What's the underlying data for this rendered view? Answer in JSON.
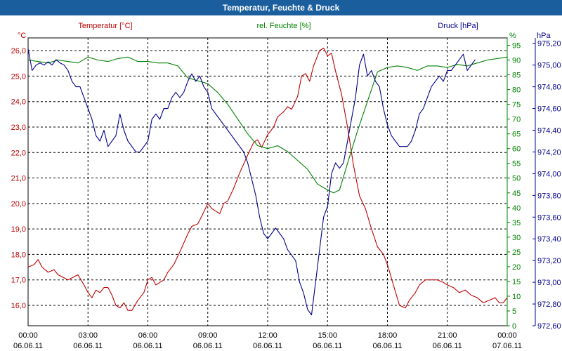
{
  "window": {
    "title": "Temperatur, Feuchte & Druck"
  },
  "colors": {
    "temperature": "#c00000",
    "humidity": "#008000",
    "pressure": "#00008b",
    "titlebar": "#1a5e9e",
    "grid": "#000000"
  },
  "chart_data": {
    "type": "line",
    "title": "Temperatur, Feuchte & Druck",
    "x_ticks": [
      {
        "time": "00:00",
        "date": "06.06.11"
      },
      {
        "time": "03:00",
        "date": "06.06.11"
      },
      {
        "time": "06:00",
        "date": "06.06.11"
      },
      {
        "time": "09:00",
        "date": "06.06.11"
      },
      {
        "time": "12:00",
        "date": "06.06.11"
      },
      {
        "time": "15:00",
        "date": "06.06.11"
      },
      {
        "time": "18:00",
        "date": "06.06.11"
      },
      {
        "time": "21:00",
        "date": "06.06.11"
      },
      {
        "time": "00:00",
        "date": "07.06.11"
      }
    ],
    "x_range_hours": [
      0,
      24
    ],
    "axes": {
      "temperature": {
        "label": "Temperatur [°C]",
        "unit": "°C",
        "range": [
          15.2,
          26.5
        ],
        "ticks": [
          "16,0",
          "17,0",
          "18,0",
          "19,0",
          "20,0",
          "21,0",
          "22,0",
          "23,0",
          "24,0",
          "25,0",
          "26,0"
        ]
      },
      "humidity": {
        "label": "rel. Feuchte [%]",
        "unit": "%",
        "range": [
          0,
          97.5
        ],
        "ticks": [
          "0",
          "5",
          "10",
          "15",
          "20",
          "25",
          "30",
          "35",
          "40",
          "45",
          "50",
          "55",
          "60",
          "65",
          "70",
          "75",
          "80",
          "85",
          "90",
          "95"
        ]
      },
      "pressure": {
        "label": "Druck [hPa]",
        "unit": "hPa",
        "range": [
          972.6,
          975.25
        ],
        "ticks": [
          "972,60",
          "972,80",
          "973,00",
          "973,20",
          "973,40",
          "973,60",
          "973,80",
          "974,00",
          "974,20",
          "974,40",
          "974,60",
          "974,80",
          "975,00",
          "975,20"
        ]
      }
    },
    "series": [
      {
        "name": "Temperatur",
        "axis": "temperature",
        "points": [
          [
            0,
            17.5
          ],
          [
            0.3,
            17.6
          ],
          [
            0.5,
            17.8
          ],
          [
            0.7,
            17.5
          ],
          [
            1,
            17.3
          ],
          [
            1.3,
            17.4
          ],
          [
            1.5,
            17.2
          ],
          [
            2,
            17.0
          ],
          [
            2.5,
            17.2
          ],
          [
            2.8,
            16.8
          ],
          [
            3,
            16.5
          ],
          [
            3.2,
            16.3
          ],
          [
            3.4,
            16.6
          ],
          [
            3.6,
            16.5
          ],
          [
            3.8,
            16.7
          ],
          [
            4,
            16.7
          ],
          [
            4.2,
            16.4
          ],
          [
            4.4,
            16.0
          ],
          [
            4.6,
            15.9
          ],
          [
            4.8,
            16.1
          ],
          [
            5,
            15.8
          ],
          [
            5.2,
            15.8
          ],
          [
            5.5,
            16.2
          ],
          [
            5.8,
            16.5
          ],
          [
            6,
            17.0
          ],
          [
            6.2,
            17.1
          ],
          [
            6.4,
            16.8
          ],
          [
            6.6,
            16.9
          ],
          [
            6.8,
            17.0
          ],
          [
            7,
            17.3
          ],
          [
            7.3,
            17.6
          ],
          [
            7.6,
            18.1
          ],
          [
            8,
            18.8
          ],
          [
            8.2,
            19.1
          ],
          [
            8.5,
            19.2
          ],
          [
            8.7,
            19.5
          ],
          [
            9,
            20.0
          ],
          [
            9.2,
            19.8
          ],
          [
            9.4,
            19.7
          ],
          [
            9.6,
            19.6
          ],
          [
            9.8,
            20.0
          ],
          [
            10,
            20.1
          ],
          [
            10.3,
            20.6
          ],
          [
            10.6,
            21.2
          ],
          [
            11,
            21.9
          ],
          [
            11.3,
            22.4
          ],
          [
            11.5,
            22.5
          ],
          [
            11.7,
            22.2
          ],
          [
            12,
            22.7
          ],
          [
            12.3,
            23.0
          ],
          [
            12.5,
            23.4
          ],
          [
            12.8,
            23.6
          ],
          [
            13,
            23.8
          ],
          [
            13.2,
            23.7
          ],
          [
            13.5,
            24.2
          ],
          [
            13.7,
            25.0
          ],
          [
            13.9,
            25.1
          ],
          [
            14.1,
            24.8
          ],
          [
            14.3,
            25.4
          ],
          [
            14.6,
            26.0
          ],
          [
            14.8,
            26.1
          ],
          [
            15,
            25.8
          ],
          [
            15.2,
            25.9
          ],
          [
            15.4,
            25.2
          ],
          [
            15.7,
            24.3
          ],
          [
            16,
            23.0
          ],
          [
            16.3,
            21.5
          ],
          [
            16.6,
            20.3
          ],
          [
            16.9,
            19.8
          ],
          [
            17.2,
            19.0
          ],
          [
            17.5,
            18.3
          ],
          [
            17.8,
            18.0
          ],
          [
            18,
            17.6
          ],
          [
            18.3,
            16.8
          ],
          [
            18.6,
            16.0
          ],
          [
            18.9,
            15.9
          ],
          [
            19.1,
            16.2
          ],
          [
            19.4,
            16.5
          ],
          [
            19.6,
            16.8
          ],
          [
            19.9,
            17.0
          ],
          [
            20.2,
            17.0
          ],
          [
            20.5,
            17.0
          ],
          [
            20.8,
            16.9
          ],
          [
            21,
            16.8
          ],
          [
            21.3,
            16.7
          ],
          [
            21.6,
            16.5
          ],
          [
            21.9,
            16.6
          ],
          [
            22.2,
            16.4
          ],
          [
            22.5,
            16.3
          ],
          [
            22.8,
            16.1
          ],
          [
            23.1,
            16.2
          ],
          [
            23.4,
            16.3
          ],
          [
            23.6,
            16.1
          ],
          [
            23.8,
            16.1
          ],
          [
            24,
            16.3
          ]
        ]
      },
      {
        "name": "rel. Feuchte",
        "axis": "humidity",
        "points": [
          [
            0,
            90
          ],
          [
            0.5,
            89.5
          ],
          [
            1,
            89
          ],
          [
            1.5,
            90
          ],
          [
            2,
            89.5
          ],
          [
            2.5,
            89
          ],
          [
            3,
            91
          ],
          [
            3.5,
            90
          ],
          [
            4,
            89.5
          ],
          [
            4.5,
            90.5
          ],
          [
            5,
            91
          ],
          [
            5.5,
            89.5
          ],
          [
            6,
            89.5
          ],
          [
            6.5,
            89
          ],
          [
            7,
            89
          ],
          [
            7.5,
            88
          ],
          [
            8,
            84
          ],
          [
            8.5,
            83
          ],
          [
            9,
            82
          ],
          [
            9.5,
            79
          ],
          [
            10,
            75
          ],
          [
            10.5,
            70
          ],
          [
            11,
            65
          ],
          [
            11.5,
            61
          ],
          [
            12,
            60
          ],
          [
            12.5,
            61
          ],
          [
            13,
            59
          ],
          [
            13.5,
            56
          ],
          [
            14,
            53
          ],
          [
            14.5,
            48
          ],
          [
            15,
            46
          ],
          [
            15.3,
            45
          ],
          [
            15.6,
            46
          ],
          [
            16,
            55
          ],
          [
            16.5,
            66
          ],
          [
            17,
            76
          ],
          [
            17.5,
            86
          ],
          [
            18,
            87.5
          ],
          [
            18.5,
            88
          ],
          [
            19,
            87.5
          ],
          [
            19.5,
            86.5
          ],
          [
            20,
            88
          ],
          [
            20.5,
            88
          ],
          [
            21,
            87.5
          ],
          [
            21.5,
            88.5
          ],
          [
            22,
            88
          ],
          [
            22.5,
            89
          ],
          [
            23,
            90
          ],
          [
            23.5,
            90.5
          ],
          [
            24,
            91
          ]
        ]
      },
      {
        "name": "Druck",
        "axis": "pressure",
        "points": [
          [
            0,
            975.15
          ],
          [
            0.2,
            974.95
          ],
          [
            0.4,
            975.0
          ],
          [
            0.6,
            975.02
          ],
          [
            0.8,
            975.0
          ],
          [
            1,
            975.03
          ],
          [
            1.2,
            975.0
          ],
          [
            1.4,
            975.05
          ],
          [
            1.6,
            975.02
          ],
          [
            1.8,
            975.0
          ],
          [
            2,
            974.95
          ],
          [
            2.2,
            974.85
          ],
          [
            2.4,
            974.8
          ],
          [
            2.6,
            974.8
          ],
          [
            2.8,
            974.7
          ],
          [
            3,
            974.6
          ],
          [
            3.2,
            974.5
          ],
          [
            3.4,
            974.35
          ],
          [
            3.6,
            974.3
          ],
          [
            3.8,
            974.4
          ],
          [
            4,
            974.25
          ],
          [
            4.2,
            974.3
          ],
          [
            4.4,
            974.35
          ],
          [
            4.6,
            974.55
          ],
          [
            4.8,
            974.4
          ],
          [
            5,
            974.3
          ],
          [
            5.2,
            974.25
          ],
          [
            5.4,
            974.2
          ],
          [
            5.6,
            974.2
          ],
          [
            5.8,
            974.25
          ],
          [
            6,
            974.3
          ],
          [
            6.2,
            974.5
          ],
          [
            6.4,
            974.55
          ],
          [
            6.6,
            974.5
          ],
          [
            6.8,
            974.6
          ],
          [
            7,
            974.6
          ],
          [
            7.2,
            974.7
          ],
          [
            7.4,
            974.75
          ],
          [
            7.6,
            974.7
          ],
          [
            7.8,
            974.75
          ],
          [
            8,
            974.85
          ],
          [
            8.2,
            974.92
          ],
          [
            8.4,
            974.85
          ],
          [
            8.6,
            974.9
          ],
          [
            8.8,
            974.8
          ],
          [
            9,
            974.75
          ],
          [
            9.2,
            974.6
          ],
          [
            9.4,
            974.55
          ],
          [
            9.6,
            974.5
          ],
          [
            9.8,
            974.45
          ],
          [
            10,
            974.4
          ],
          [
            10.2,
            974.35
          ],
          [
            10.4,
            974.3
          ],
          [
            10.6,
            974.25
          ],
          [
            10.8,
            974.2
          ],
          [
            11,
            974.1
          ],
          [
            11.2,
            973.95
          ],
          [
            11.4,
            973.8
          ],
          [
            11.6,
            973.6
          ],
          [
            11.8,
            973.45
          ],
          [
            12,
            973.4
          ],
          [
            12.2,
            973.45
          ],
          [
            12.4,
            973.5
          ],
          [
            12.6,
            973.45
          ],
          [
            12.8,
            973.4
          ],
          [
            13,
            973.3
          ],
          [
            13.2,
            973.25
          ],
          [
            13.4,
            973.2
          ],
          [
            13.6,
            973.0
          ],
          [
            13.8,
            972.9
          ],
          [
            14,
            972.75
          ],
          [
            14.2,
            972.7
          ],
          [
            14.4,
            973.0
          ],
          [
            14.6,
            973.3
          ],
          [
            14.8,
            973.6
          ],
          [
            15,
            973.7
          ],
          [
            15.2,
            974.0
          ],
          [
            15.4,
            974.1
          ],
          [
            15.6,
            974.05
          ],
          [
            15.8,
            974.1
          ],
          [
            16,
            974.3
          ],
          [
            16.2,
            974.5
          ],
          [
            16.4,
            974.7
          ],
          [
            16.6,
            975.0
          ],
          [
            16.8,
            975.1
          ],
          [
            17,
            974.9
          ],
          [
            17.2,
            974.95
          ],
          [
            17.4,
            974.85
          ],
          [
            17.6,
            974.8
          ],
          [
            17.8,
            974.6
          ],
          [
            18,
            974.45
          ],
          [
            18.2,
            974.35
          ],
          [
            18.4,
            974.3
          ],
          [
            18.6,
            974.25
          ],
          [
            18.8,
            974.25
          ],
          [
            19,
            974.25
          ],
          [
            19.2,
            974.3
          ],
          [
            19.4,
            974.4
          ],
          [
            19.6,
            974.55
          ],
          [
            19.8,
            974.6
          ],
          [
            20,
            974.7
          ],
          [
            20.2,
            974.8
          ],
          [
            20.4,
            974.85
          ],
          [
            20.6,
            974.9
          ],
          [
            20.8,
            974.85
          ],
          [
            21,
            974.95
          ],
          [
            21.2,
            974.95
          ],
          [
            21.4,
            975.0
          ],
          [
            21.6,
            975.05
          ],
          [
            21.8,
            975.1
          ],
          [
            22,
            974.95
          ],
          [
            22.2,
            975.0
          ],
          [
            22.4,
            975.05
          ]
        ]
      }
    ]
  }
}
